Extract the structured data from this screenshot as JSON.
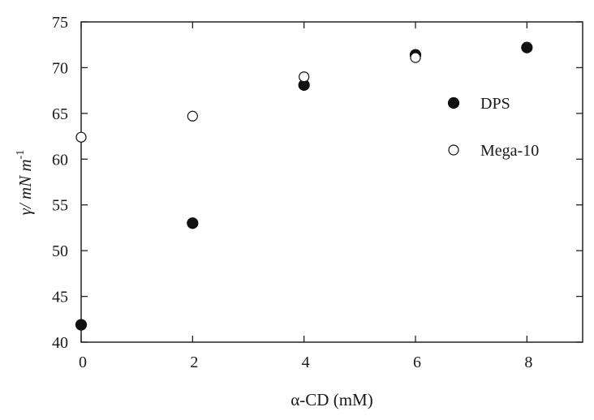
{
  "chart_data": {
    "type": "scatter",
    "title": "",
    "xlabel": "α-CD (mM)",
    "ylabel": "γ/ mN m",
    "ylabel_superscript": "-1",
    "xlim": [
      0,
      9
    ],
    "ylim": [
      40,
      75
    ],
    "xticks": [
      0,
      2,
      4,
      6,
      8
    ],
    "yticks": [
      40,
      45,
      50,
      55,
      60,
      65,
      70,
      75
    ],
    "grid": false,
    "legend_placement": "right",
    "series": [
      {
        "name": "DPS",
        "marker": "filled-circle",
        "color": "#111111",
        "x": [
          0,
          2,
          4,
          6,
          8
        ],
        "y": [
          41.9,
          53.0,
          68.1,
          71.4,
          72.2
        ]
      },
      {
        "name": "Mega-10",
        "marker": "open-circle",
        "color": "#111111",
        "x": [
          0,
          2,
          4,
          6
        ],
        "y": [
          62.4,
          64.7,
          69.0,
          71.1
        ]
      }
    ]
  }
}
